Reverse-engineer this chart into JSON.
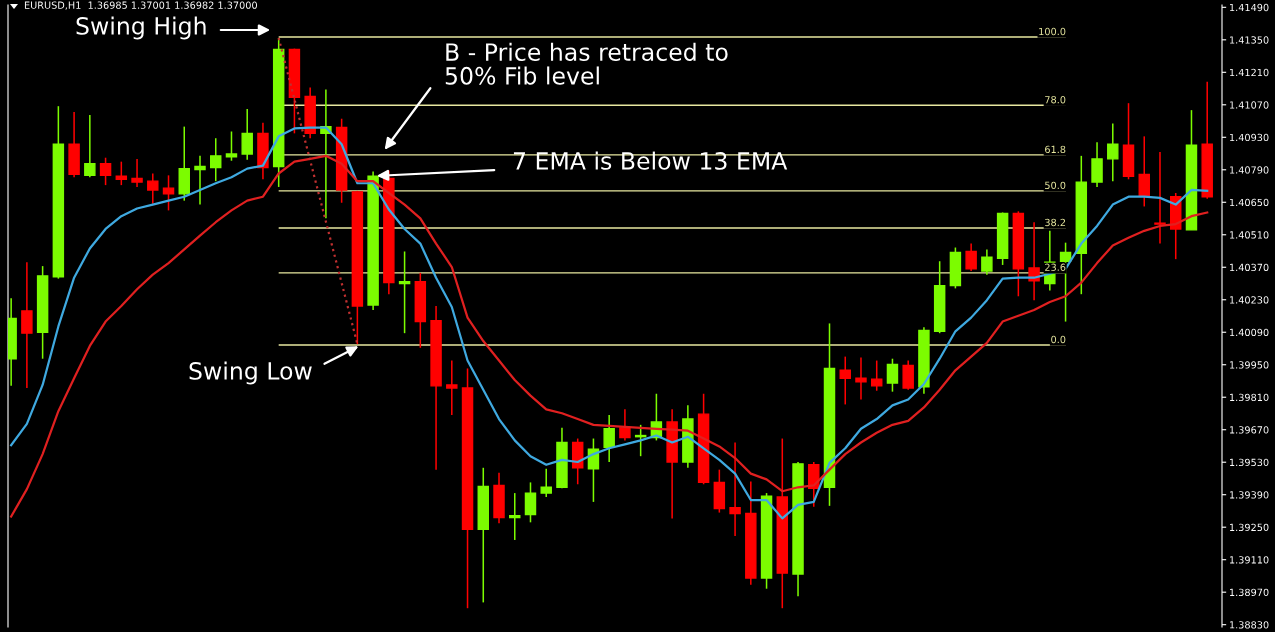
{
  "chart_data": {
    "type": "candlestick",
    "title": "EURUSD,H1  1.36985 1.37001 1.36982 1.37000",
    "categories": [
      null,
      null,
      null,
      null,
      null,
      null,
      null,
      null,
      null,
      null,
      null,
      null,
      null,
      null,
      null,
      null,
      null,
      null,
      null,
      null,
      null,
      null,
      null,
      null,
      null,
      null,
      null,
      null,
      null,
      null,
      null,
      null,
      null,
      null,
      null,
      null,
      null,
      null,
      null,
      null,
      null,
      null,
      null,
      null,
      null,
      null,
      null,
      null,
      null,
      null,
      null,
      null,
      null,
      null,
      null,
      null,
      null,
      null,
      null,
      null,
      null,
      null,
      null,
      null,
      null,
      null,
      null,
      null,
      null,
      null,
      null,
      null,
      null,
      null,
      null,
      null,
      null
    ],
    "ohlc": [
      [
        1.39976,
        1.40237,
        1.39859,
        1.40149
      ],
      [
        1.40182,
        1.40392,
        1.3985,
        1.40086
      ],
      [
        1.4009,
        1.40375,
        1.39976,
        1.40333
      ],
      [
        1.40329,
        1.41064,
        1.40321,
        1.409
      ],
      [
        1.409,
        1.41039,
        1.40758,
        1.4077
      ],
      [
        1.40766,
        1.41026,
        1.40758,
        1.40816
      ],
      [
        1.40816,
        1.40842,
        1.40724,
        1.40766
      ],
      [
        1.40762,
        1.40825,
        1.40724,
        1.40749
      ],
      [
        1.40753,
        1.40837,
        1.40716,
        1.40737
      ],
      [
        1.40741,
        1.40774,
        1.40644,
        1.40703
      ],
      [
        1.40711,
        1.40766,
        1.40615,
        1.40686
      ],
      [
        1.40686,
        1.40976,
        1.40657,
        1.40795
      ],
      [
        1.40791,
        1.4085,
        1.4064,
        1.40804
      ],
      [
        1.408,
        1.40926,
        1.40741,
        1.4085
      ],
      [
        1.40846,
        1.40955,
        1.40829,
        1.40858
      ],
      [
        1.40858,
        1.41052,
        1.40833,
        1.40947
      ],
      [
        1.40947,
        1.40993,
        1.40749,
        1.408
      ],
      [
        1.40804,
        1.41358,
        1.40716,
        1.41308
      ],
      [
        1.41308,
        1.41312,
        1.40947,
        1.41102
      ],
      [
        1.41106,
        1.41144,
        1.40926,
        1.40947
      ],
      [
        1.40947,
        1.41136,
        1.40581,
        1.40976
      ],
      [
        1.40972,
        1.4101,
        1.40648,
        1.40703
      ],
      [
        1.40695,
        1.40699,
        1.40039,
        1.40203
      ],
      [
        1.40207,
        1.40783,
        1.40186,
        1.40762
      ],
      [
        1.40753,
        1.40787,
        1.40254,
        1.40304
      ],
      [
        1.403,
        1.40438,
        1.40086,
        1.40308
      ],
      [
        1.40308,
        1.40346,
        1.40023,
        1.40136
      ],
      [
        1.4014,
        1.40203,
        1.39498,
        1.39859
      ],
      [
        1.39863,
        1.39968,
        1.39733,
        1.3985
      ],
      [
        1.3985,
        1.39934,
        1.38901,
        1.39241
      ],
      [
        1.39241,
        1.39506,
        1.38926,
        1.39426
      ],
      [
        1.3943,
        1.39485,
        1.39267,
        1.39292
      ],
      [
        1.39292,
        1.39397,
        1.39195,
        1.393
      ],
      [
        1.39304,
        1.39443,
        1.39271,
        1.39397
      ],
      [
        1.39397,
        1.39502,
        1.3938,
        1.39422
      ],
      [
        1.39422,
        1.39678,
        1.39418,
        1.39615
      ],
      [
        1.39615,
        1.39632,
        1.39435,
        1.39506
      ],
      [
        1.39502,
        1.39632,
        1.39359,
        1.39586
      ],
      [
        1.39594,
        1.39733,
        1.39531,
        1.39674
      ],
      [
        1.39678,
        1.39758,
        1.39624,
        1.39636
      ],
      [
        1.3964,
        1.39691,
        1.39556,
        1.39645
      ],
      [
        1.39636,
        1.39825,
        1.39624,
        1.39703
      ],
      [
        1.39703,
        1.39758,
        1.39288,
        1.39531
      ],
      [
        1.39531,
        1.39775,
        1.39506,
        1.39716
      ],
      [
        1.39737,
        1.39825,
        1.39435,
        1.39443
      ],
      [
        1.39443,
        1.39498,
        1.39313,
        1.3933
      ],
      [
        1.39334,
        1.39615,
        1.39212,
        1.39309
      ],
      [
        1.39309,
        1.39447,
        1.39002,
        1.39031
      ],
      [
        1.39031,
        1.39397,
        1.38985,
        1.39384
      ],
      [
        1.3938,
        1.39632,
        1.38901,
        1.39052
      ],
      [
        1.39048,
        1.39531,
        1.38952,
        1.39523
      ],
      [
        1.39519,
        1.39531,
        1.39338,
        1.39418
      ],
      [
        1.39422,
        1.40128,
        1.39342,
        1.39934
      ],
      [
        1.39926,
        1.39985,
        1.39779,
        1.39892
      ],
      [
        1.39892,
        1.39981,
        1.398,
        1.39876
      ],
      [
        1.39888,
        1.39968,
        1.39838,
        1.39859
      ],
      [
        1.39871,
        1.39976,
        1.39834,
        1.39951
      ],
      [
        1.39947,
        1.39968,
        1.39842,
        1.3985
      ],
      [
        1.39855,
        1.40111,
        1.39825,
        1.40098
      ],
      [
        1.40094,
        1.40396,
        1.40086,
        1.40291
      ],
      [
        1.40291,
        1.40455,
        1.40279,
        1.40434
      ],
      [
        1.40438,
        1.40472,
        1.40354,
        1.40363
      ],
      [
        1.40354,
        1.40447,
        1.40338,
        1.40413
      ],
      [
        1.40409,
        1.40606,
        1.4038,
        1.40602
      ],
      [
        1.40602,
        1.40611,
        1.40245,
        1.40363
      ],
      [
        1.40367,
        1.40564,
        1.40228,
        1.40312
      ],
      [
        1.403,
        1.40527,
        1.4027,
        1.40392
      ],
      [
        1.40396,
        1.40476,
        1.40136,
        1.40434
      ],
      [
        1.4043,
        1.4085,
        1.40254,
        1.40737
      ],
      [
        1.40737,
        1.40909,
        1.40716,
        1.40837
      ],
      [
        1.40837,
        1.40989,
        1.40741,
        1.409
      ],
      [
        1.40896,
        1.41077,
        1.40749,
        1.40762
      ],
      [
        1.4077,
        1.40934,
        1.40632,
        1.40678
      ],
      [
        1.4056,
        1.40867,
        1.40472,
        1.40556
      ],
      [
        1.40674,
        1.4069,
        1.40405,
        1.40535
      ],
      [
        1.40531,
        1.41047,
        1.40531,
        1.40896
      ],
      [
        1.409,
        1.41169,
        1.40665,
        1.40674
      ]
    ],
    "colors": [
      "#7cfc00",
      "#ff0000",
      "#7cfc00",
      "#7cfc00",
      "#ff0000",
      "#7cfc00",
      "#ff0000",
      "#ff0000",
      "#ff0000",
      "#ff0000",
      "#ff0000",
      "#7cfc00",
      "#7cfc00",
      "#7cfc00",
      "#7cfc00",
      "#7cfc00",
      "#ff0000",
      "#7cfc00",
      "#ff0000",
      "#ff0000",
      "#7cfc00",
      "#ff0000",
      "#ff0000",
      "#7cfc00",
      "#ff0000",
      "#7cfc00",
      "#ff0000",
      "#ff0000",
      "#ff0000",
      "#ff0000",
      "#7cfc00",
      "#ff0000",
      "#7cfc00",
      "#7cfc00",
      "#7cfc00",
      "#7cfc00",
      "#ff0000",
      "#7cfc00",
      "#7cfc00",
      "#ff0000",
      "#7cfc00",
      "#7cfc00",
      "#ff0000",
      "#7cfc00",
      "#ff0000",
      "#ff0000",
      "#ff0000",
      "#ff0000",
      "#7cfc00",
      "#ff0000",
      "#7cfc00",
      "#ff0000",
      "#7cfc00",
      "#ff0000",
      "#ff0000",
      "#ff0000",
      "#7cfc00",
      "#ff0000",
      "#7cfc00",
      "#7cfc00",
      "#7cfc00",
      "#ff0000",
      "#7cfc00",
      "#7cfc00",
      "#ff0000",
      "#ff0000",
      "#7cfc00",
      "#7cfc00",
      "#7cfc00",
      "#7cfc00",
      "#7cfc00",
      "#ff0000",
      "#ff0000",
      "#ff0000",
      "#ff0000",
      "#7cfc00",
      "#ff0000"
    ],
    "series": [
      {
        "type": "line",
        "color": "#3fa9e0",
        "values": [
          1.39603,
          1.39695,
          1.39863,
          1.40115,
          1.40325,
          1.40451,
          1.40535,
          1.4059,
          1.40623,
          1.4064,
          1.40657,
          1.40674,
          1.40703,
          1.40732,
          1.40758,
          1.40795,
          1.40808,
          1.40934,
          1.40968,
          1.40972,
          1.40972,
          1.409,
          1.40732,
          1.40732,
          1.40619,
          1.40535,
          1.40472,
          1.40325,
          1.40199,
          1.39968,
          1.39842,
          1.39716,
          1.39624,
          1.39556,
          1.39519,
          1.3954,
          1.39531,
          1.39565,
          1.3959,
          1.39607,
          1.39624,
          1.39645,
          1.39615,
          1.3964,
          1.3959,
          1.3954,
          1.39481,
          1.39367,
          1.39367,
          1.39288,
          1.39346,
          1.39359,
          1.39527,
          1.3959,
          1.39674,
          1.39716,
          1.39775,
          1.398,
          1.39867,
          1.39976,
          1.40094,
          1.40153,
          1.40228,
          1.40321,
          1.40325,
          1.40325,
          1.40342,
          1.40363,
          1.40472,
          1.40548,
          1.4064,
          1.40674,
          1.40674,
          1.40669,
          1.4064,
          1.40703,
          1.40699
        ]
      },
      {
        "type": "line",
        "color": "#e02020",
        "values": [
          1.39296,
          1.39414,
          1.39565,
          1.3975,
          1.39892,
          1.40031,
          1.40136,
          1.40203,
          1.40275,
          1.40338,
          1.40388,
          1.40447,
          1.40506,
          1.40564,
          1.40615,
          1.40657,
          1.40674,
          1.40774,
          1.40825,
          1.40837,
          1.4085,
          1.40816,
          1.40741,
          1.40741,
          1.4069,
          1.4064,
          1.40581,
          1.40472,
          1.40371,
          1.40153,
          1.40052,
          1.39968,
          1.39884,
          1.39817,
          1.39758,
          1.39741,
          1.39716,
          1.39691,
          1.39687,
          1.39682,
          1.39678,
          1.39674,
          1.3967,
          1.39666,
          1.39632,
          1.39598,
          1.39548,
          1.39481,
          1.39456,
          1.39405,
          1.39422,
          1.3943,
          1.39498,
          1.39565,
          1.39615,
          1.39657,
          1.39691,
          1.39708,
          1.39766,
          1.39842,
          1.39926,
          1.39985,
          1.40044,
          1.40136,
          1.40161,
          1.40186,
          1.4022,
          1.40245,
          1.40304,
          1.40388,
          1.40464,
          1.40497,
          1.40527,
          1.40548,
          1.40556,
          1.4059,
          1.40606
        ]
      },
      {
        "type": "line",
        "color": "#c03030",
        "line_style": "dotted",
        "values": [
          null,
          null,
          null,
          null,
          null,
          null,
          null,
          null,
          null,
          null,
          null,
          null,
          null,
          null,
          null,
          null,
          null,
          1.41358,
          null,
          null,
          null,
          null,
          1.40039,
          null,
          null,
          null,
          null,
          null,
          null,
          null,
          null,
          null,
          null,
          null,
          null,
          null,
          null,
          null,
          null,
          null,
          null,
          null,
          null,
          null,
          null,
          null,
          null,
          null,
          null,
          null,
          null,
          null,
          null,
          null,
          null,
          null,
          null,
          null,
          null,
          null,
          null,
          null,
          null,
          null,
          null,
          null,
          null,
          null,
          null,
          null,
          null,
          null,
          null,
          null,
          null,
          null,
          null
        ]
      }
    ],
    "ref_lines": [
      {
        "axis": "y",
        "value": 1.41362,
        "color": "#e8e8a0"
      },
      {
        "axis": "y",
        "value": 1.41068,
        "color": "#e8e8a0"
      },
      {
        "axis": "y",
        "value": 1.40854,
        "color": "#e8e8a0"
      },
      {
        "axis": "y",
        "value": 1.40699,
        "color": "#e8e8a0"
      },
      {
        "axis": "y",
        "value": 1.40539,
        "color": "#e8e8a0"
      },
      {
        "axis": "y",
        "value": 1.40346,
        "color": "#e8e8a0"
      },
      {
        "axis": "y",
        "value": 1.40035,
        "color": "#e8e8a0"
      }
    ],
    "annotations": [
      "Swing High",
      "B - Price has retraced to\n50% Fib level",
      "7 EMA is Below 13 EMA",
      "Swing Low",
      {
        "text": "100.0",
        "y": 1.41362
      },
      {
        "text": "78.0",
        "y": 1.41068
      },
      {
        "text": "61.8",
        "y": 1.40854
      },
      {
        "text": "50.0",
        "y": 1.40699
      },
      {
        "text": "38.2",
        "y": 1.40539
      },
      {
        "text": "23.6",
        "y": 1.40346
      },
      {
        "text": "0.0",
        "y": 1.40035
      }
    ],
    "ylim": [
      1.3882,
      1.415
    ],
    "yticks": [
      {
        "value": 1.3883,
        "label": "1.38830"
      },
      {
        "value": 1.3897,
        "label": "1.38970"
      },
      {
        "value": 1.3911,
        "label": "1.39110"
      },
      {
        "value": 1.3925,
        "label": "1.39250"
      },
      {
        "value": 1.3939,
        "label": "1.39390"
      },
      {
        "value": 1.3953,
        "label": "1.39530"
      },
      {
        "value": 1.3967,
        "label": "1.39670"
      },
      {
        "value": 1.3981,
        "label": "1.39810"
      },
      {
        "value": 1.3995,
        "label": "1.39950"
      },
      {
        "value": 1.4009,
        "label": "1.40090"
      },
      {
        "value": 1.4023,
        "label": "1.40230"
      },
      {
        "value": 1.4037,
        "label": "1.40370"
      },
      {
        "value": 1.4051,
        "label": "1.40510"
      },
      {
        "value": 1.4065,
        "label": "1.40650"
      },
      {
        "value": 1.4079,
        "label": "1.40790"
      },
      {
        "value": 1.4093,
        "label": "1.40930"
      },
      {
        "value": 1.4107,
        "label": "1.41070"
      },
      {
        "value": 1.4121,
        "label": "1.41210"
      },
      {
        "value": 1.4135,
        "label": "1.41350"
      },
      {
        "value": 1.4149,
        "label": "1.41490"
      }
    ],
    "tick_labels": "y",
    "grid": false,
    "legend": false
  }
}
